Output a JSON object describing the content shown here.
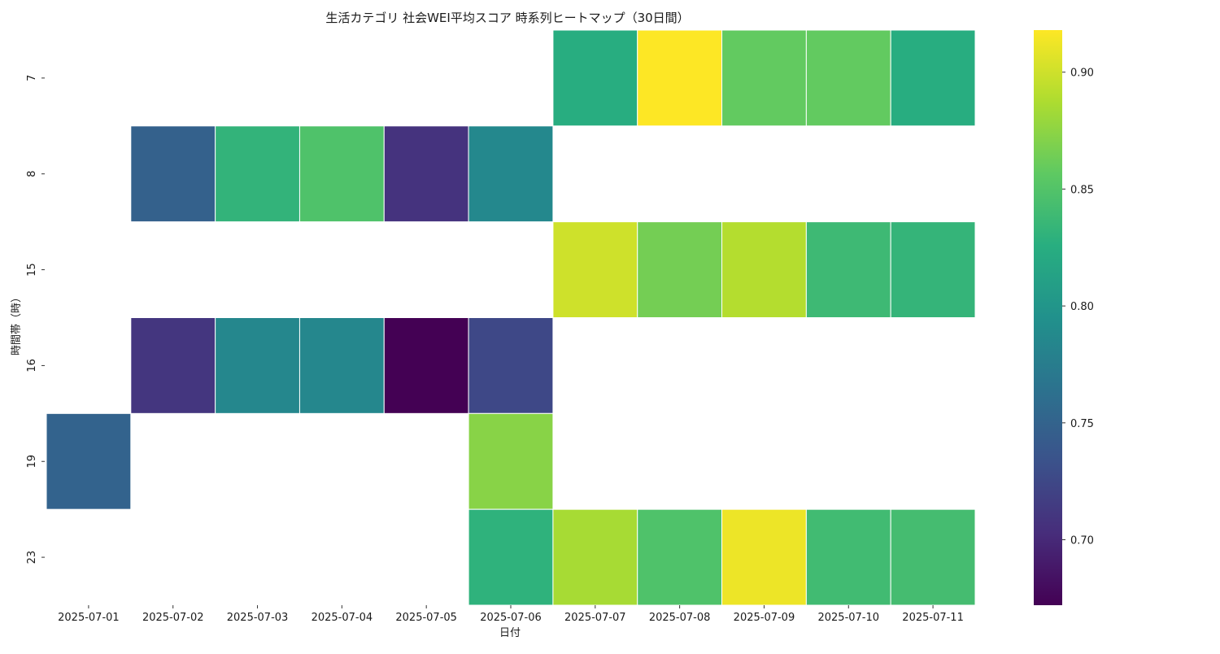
{
  "chart_data": {
    "type": "heatmap",
    "title": "生活カテゴリ 社会WEI平均スコア 時系列ヒートマップ（30日間）",
    "xlabel": "日付",
    "ylabel": "時間帯（時）",
    "x": [
      "2025-07-01",
      "2025-07-02",
      "2025-07-03",
      "2025-07-04",
      "2025-07-05",
      "2025-07-06",
      "2025-07-07",
      "2025-07-08",
      "2025-07-09",
      "2025-07-10",
      "2025-07-11"
    ],
    "y": [
      "7",
      "8",
      "15",
      "16",
      "19",
      "23"
    ],
    "values": [
      [
        null,
        null,
        null,
        null,
        null,
        null,
        0.825,
        0.918,
        0.858,
        0.858,
        0.825
      ],
      [
        null,
        0.748,
        0.832,
        0.848,
        0.708,
        0.786,
        null,
        null,
        null,
        null,
        null
      ],
      [
        null,
        null,
        null,
        null,
        null,
        null,
        0.9,
        0.865,
        0.89,
        0.838,
        0.833
      ],
      [
        null,
        0.71,
        0.785,
        0.785,
        0.672,
        0.725,
        null,
        null,
        null,
        null,
        null
      ],
      [
        0.75,
        null,
        null,
        null,
        null,
        0.873,
        null,
        null,
        null,
        null,
        null
      ],
      [
        null,
        null,
        null,
        null,
        null,
        0.83,
        0.885,
        0.848,
        0.912,
        0.84,
        0.842
      ]
    ],
    "colorbar": {
      "colormap": "viridis",
      "min": 0.672,
      "max": 0.918,
      "ticks": [
        "0.70",
        "0.75",
        "0.80",
        "0.85",
        "0.90"
      ]
    },
    "grid": false,
    "legend": "right colorbar"
  }
}
